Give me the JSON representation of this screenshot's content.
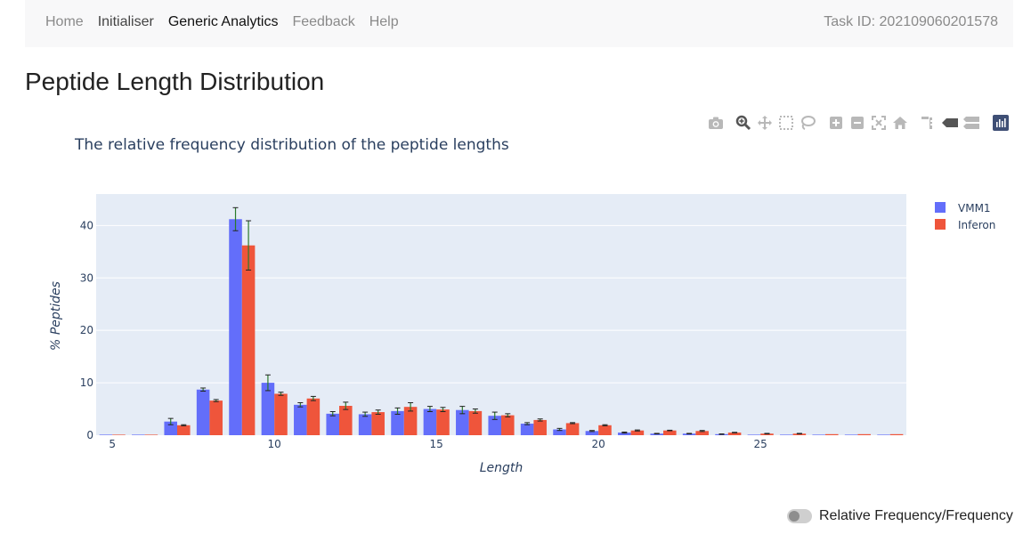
{
  "nav": {
    "items": [
      {
        "label": "Home",
        "style": "muted"
      },
      {
        "label": "Initialiser",
        "style": "dark"
      },
      {
        "label": "Generic Analytics",
        "style": "active"
      },
      {
        "label": "Feedback",
        "style": "muted"
      },
      {
        "label": "Help",
        "style": "muted"
      }
    ],
    "task_id": "Task ID: 202109060201578"
  },
  "page_title": "Peptide Length Distribution",
  "modebar": [
    "camera-icon",
    "zoom-icon",
    "pan-icon",
    "box-select-icon",
    "lasso-icon",
    "zoom-in-icon",
    "zoom-out-icon",
    "autoscale-icon",
    "reset-axes-icon",
    "spike-lines-icon",
    "hover-closest-icon",
    "hover-compare-icon",
    "plotly-logo-icon"
  ],
  "toggle": {
    "label": "Relative Frequency/Frequency",
    "checked": false
  },
  "colors": {
    "series1": "#636efa",
    "series2": "#ef553b",
    "error_bar": "#2a7a2a",
    "plot_bg": "#e5ecf6"
  },
  "chart_data": {
    "type": "bar",
    "title": "The relative frequency distribution of the peptide lengths",
    "xlabel": "Length",
    "ylabel": "% Peptides",
    "xlim": [
      4.5,
      29.5
    ],
    "ylim": [
      0,
      46
    ],
    "xticks": [
      5,
      10,
      15,
      20,
      25
    ],
    "yticks": [
      0,
      10,
      20,
      30,
      40
    ],
    "grid": true,
    "legend_position": "right",
    "x": [
      5,
      6,
      7,
      8,
      9,
      10,
      11,
      12,
      13,
      14,
      15,
      16,
      17,
      18,
      19,
      20,
      21,
      22,
      23,
      24,
      25,
      26,
      27,
      28,
      29
    ],
    "series": [
      {
        "name": "VMM1",
        "values": [
          0.1,
          0.1,
          2.6,
          8.7,
          41.2,
          10.0,
          5.8,
          4.1,
          4.0,
          4.6,
          5.0,
          4.8,
          3.7,
          2.2,
          1.1,
          0.8,
          0.5,
          0.3,
          0.3,
          0.2,
          0.1,
          0.1,
          0.1,
          0.1,
          0.1
        ],
        "errors": [
          0,
          0,
          0.6,
          0.3,
          2.2,
          1.5,
          0.4,
          0.4,
          0.4,
          0.6,
          0.5,
          0.7,
          0.7,
          0.2,
          0.2,
          0.1,
          0.1,
          0.05,
          0.05,
          0.05,
          0,
          0,
          0,
          0,
          0
        ]
      },
      {
        "name": "Inferon",
        "values": [
          0,
          0,
          1.9,
          6.6,
          36.2,
          7.9,
          7.0,
          5.6,
          4.4,
          5.4,
          4.9,
          4.6,
          3.8,
          2.9,
          2.3,
          1.9,
          0.9,
          0.9,
          0.8,
          0.5,
          0.3,
          0.3,
          0.2,
          0.2,
          0.2
        ],
        "errors": [
          0,
          0,
          0.1,
          0.2,
          4.7,
          0.3,
          0.4,
          0.7,
          0.4,
          0.8,
          0.4,
          0.4,
          0.3,
          0.2,
          0.1,
          0.1,
          0.1,
          0.05,
          0.1,
          0.05,
          0.05,
          0.05,
          0,
          0,
          0
        ]
      }
    ]
  }
}
